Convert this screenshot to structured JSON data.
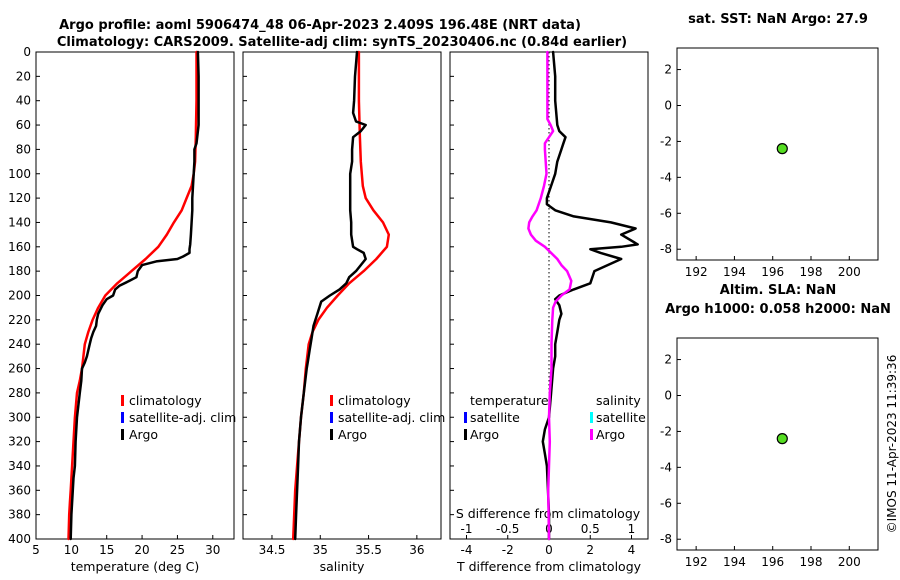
{
  "title_line1": "Argo profile: aoml 5906474_48 06-Apr-2023 2.409S 196.48E (NRT data)",
  "title_line2": "Climatology: CARS2009. Satellite-adj clim: synTS_20230406.nc (0.84d earlier)",
  "timestamp": "©IMOS 11-Apr-2023 11:39:36",
  "colors": {
    "climatology": "#ff0000",
    "satellite": "#0000ff",
    "argo": "#000000",
    "sal_satellite": "#00ffff",
    "sal_argo": "#ff00ff",
    "marker": "#55dd22"
  },
  "chart_data": [
    {
      "id": "temperature",
      "type": "line",
      "xlabel": "temperature (deg C)",
      "xlim": [
        5,
        33
      ],
      "xticks": [
        "5",
        "10",
        "15",
        "20",
        "25",
        "30"
      ],
      "ylim": [
        0,
        400
      ],
      "yticks": [
        "0",
        "20",
        "40",
        "60",
        "80",
        "100",
        "120",
        "140",
        "160",
        "180",
        "200",
        "220",
        "240",
        "260",
        "280",
        "300",
        "320",
        "340",
        "360",
        "380",
        "400"
      ],
      "legend": [
        "climatology",
        "satellite-adj. clim",
        "Argo"
      ],
      "series": [
        {
          "name": "climatology",
          "x": [
            27.7,
            27.7,
            27.6,
            27.5,
            27.3,
            27.0,
            26.3,
            25.6,
            24.5,
            23.5,
            22.3,
            20.5,
            18.5,
            16.5,
            14.8,
            13.8,
            13.0,
            12.4,
            11.9,
            11.5,
            11.2,
            10.8,
            10.5,
            10.3,
            10.1,
            10.0,
            9.9,
            9.8,
            9.7,
            9.6
          ],
          "y": [
            0,
            40,
            70,
            90,
            100,
            110,
            120,
            130,
            140,
            150,
            160,
            170,
            180,
            190,
            200,
            210,
            220,
            230,
            240,
            260,
            270,
            280,
            300,
            320,
            340,
            350,
            360,
            370,
            380,
            400
          ]
        },
        {
          "name": "Argo",
          "x": [
            27.9,
            28.0,
            28.0,
            28.0,
            27.8,
            27.7,
            27.4,
            27.4,
            27.3,
            27.2,
            27.1,
            27.1,
            27.0,
            26.9,
            26.8,
            26.7,
            26.7,
            25.8,
            25.0,
            22.0,
            20.0,
            19.4,
            19.2,
            18.2,
            16.8,
            16.2,
            15.9,
            15.0,
            14.4,
            13.8,
            13.6,
            13.5,
            13.1,
            12.8,
            12.6,
            12.2,
            11.9,
            11.5,
            11.4,
            11.2,
            10.8,
            10.6,
            10.5,
            10.3,
            10.2,
            10.0,
            9.9
          ],
          "y": [
            0,
            20,
            40,
            60,
            70,
            75,
            80,
            90,
            100,
            110,
            120,
            130,
            140,
            150,
            158,
            162,
            165,
            168,
            170,
            172,
            175,
            180,
            185,
            188,
            192,
            195,
            200,
            203,
            208,
            215,
            220,
            225,
            230,
            235,
            240,
            250,
            255,
            260,
            270,
            280,
            300,
            320,
            340,
            350,
            360,
            380,
            400
          ]
        }
      ]
    },
    {
      "id": "salinity",
      "type": "line",
      "xlabel": "salinity",
      "xlim": [
        34.2,
        36.25
      ],
      "xticks": [
        "34.5",
        "35",
        "35.5",
        "36"
      ],
      "ylim": [
        0,
        400
      ],
      "legend": [
        "climatology",
        "satellite-adj. clim",
        "Argo"
      ],
      "series": [
        {
          "name": "climatology",
          "x": [
            35.4,
            35.4,
            35.41,
            35.42,
            35.43,
            35.44,
            35.47,
            35.55,
            35.65,
            35.71,
            35.69,
            35.58,
            35.45,
            35.3,
            35.18,
            35.07,
            34.98,
            34.92,
            34.88,
            34.85,
            34.83,
            34.8,
            34.78,
            34.76,
            34.74,
            34.73,
            34.72
          ],
          "y": [
            0,
            40,
            70,
            90,
            100,
            110,
            120,
            130,
            140,
            150,
            160,
            170,
            180,
            190,
            200,
            210,
            220,
            230,
            240,
            260,
            280,
            300,
            320,
            340,
            360,
            380,
            400
          ]
        },
        {
          "name": "Argo",
          "x": [
            35.38,
            35.36,
            35.35,
            35.34,
            35.37,
            35.47,
            35.42,
            35.34,
            35.33,
            35.33,
            35.31,
            35.31,
            35.31,
            35.31,
            35.32,
            35.32,
            35.34,
            35.38,
            35.45,
            35.47,
            35.37,
            35.3,
            35.27,
            35.2,
            35.1,
            35.01,
            34.97,
            34.93,
            34.91,
            34.89,
            34.87,
            34.86,
            34.83,
            34.8,
            34.78,
            34.77,
            34.76,
            34.75,
            34.74
          ],
          "y": [
            0,
            20,
            40,
            50,
            57,
            60,
            65,
            70,
            80,
            90,
            100,
            110,
            120,
            130,
            140,
            150,
            160,
            162,
            165,
            170,
            180,
            185,
            190,
            195,
            200,
            205,
            215,
            225,
            235,
            245,
            255,
            260,
            280,
            300,
            320,
            340,
            360,
            380,
            400
          ]
        }
      ]
    },
    {
      "id": "difference",
      "type": "line",
      "xlabel": "T difference from climatology",
      "xlabel_top": "S difference from climatology",
      "xlim": [
        -4.8,
        4.8
      ],
      "xticks": [
        "-4",
        "-2",
        "0",
        "2",
        "4"
      ],
      "xticks_top": [
        "-1",
        "-0.5",
        "0",
        "0.5",
        "1"
      ],
      "ylim": [
        0,
        400
      ],
      "legend_temperature_title": "temperature",
      "legend_temperature": [
        "satellite",
        "Argo"
      ],
      "legend_salinity_title": "salinity",
      "legend_salinity": [
        "satellite",
        "Argo"
      ],
      "series": [
        {
          "name": "T Argo difference",
          "x": [
            0.2,
            0.3,
            0.3,
            0.4,
            0.5,
            0.8,
            0.7,
            0.6,
            0.4,
            0.3,
            0.1,
            -0.1,
            -0.1,
            0.3,
            1.2,
            3.0,
            4.2,
            3.5,
            4.3,
            3.5,
            2.0,
            2.5,
            3.5,
            2.2,
            2.0,
            1.2,
            0.5,
            0.3,
            0.5,
            0.6,
            0.5,
            0.4,
            0.3,
            0.3,
            0.2,
            0.1,
            0.0,
            -0.2,
            -0.3,
            -0.2,
            -0.1,
            -0.05,
            0.0,
            0.0
          ],
          "y": [
            0,
            20,
            40,
            60,
            65,
            70,
            75,
            80,
            90,
            100,
            110,
            120,
            125,
            130,
            135,
            140,
            145,
            150,
            158,
            160,
            162,
            165,
            170,
            180,
            190,
            195,
            200,
            203,
            208,
            215,
            220,
            230,
            240,
            250,
            260,
            280,
            300,
            310,
            320,
            330,
            340,
            360,
            380,
            400
          ]
        },
        {
          "name": "S Argo difference",
          "x": [
            -0.02,
            -0.02,
            -0.02,
            -0.02,
            0.02,
            0.05,
            0.0,
            -0.05,
            -0.05,
            -0.04,
            -0.03,
            -0.06,
            -0.1,
            -0.15,
            -0.2,
            -0.24,
            -0.25,
            -0.22,
            -0.16,
            -0.05,
            0.1,
            0.15,
            0.22,
            0.27,
            0.25,
            0.15,
            0.08,
            0.05,
            0.04,
            0.03,
            0.03,
            0.01,
            0.0,
            0.01,
            0.0,
            -0.01,
            0.0
          ],
          "y": [
            0,
            20,
            40,
            55,
            60,
            65,
            70,
            75,
            80,
            90,
            100,
            110,
            120,
            130,
            135,
            140,
            145,
            150,
            155,
            160,
            170,
            175,
            180,
            188,
            195,
            200,
            205,
            210,
            220,
            240,
            260,
            280,
            300,
            320,
            340,
            360,
            400
          ]
        }
      ]
    },
    {
      "id": "sst",
      "type": "scatter",
      "title": "sat. SST: NaN Argo: 27.9",
      "xlim": [
        191,
        201.5
      ],
      "ylim": [
        -8.6,
        3.2
      ],
      "xticks": [
        "192",
        "194",
        "196",
        "198",
        "200"
      ],
      "yticks": [
        "2",
        "0",
        "-2",
        "-4",
        "-6",
        "-8"
      ],
      "points": [
        {
          "x": 196.5,
          "y": -2.4
        }
      ]
    },
    {
      "id": "sla",
      "type": "scatter",
      "title": "Altim. SLA: NaN",
      "subtitle": "Argo h1000: 0.058 h2000: NaN",
      "xlim": [
        191,
        201.5
      ],
      "ylim": [
        -8.6,
        3.2
      ],
      "xticks": [
        "192",
        "194",
        "196",
        "198",
        "200"
      ],
      "yticks": [
        "2",
        "0",
        "-2",
        "-4",
        "-6",
        "-8"
      ],
      "points": [
        {
          "x": 196.5,
          "y": -2.4
        }
      ]
    }
  ]
}
